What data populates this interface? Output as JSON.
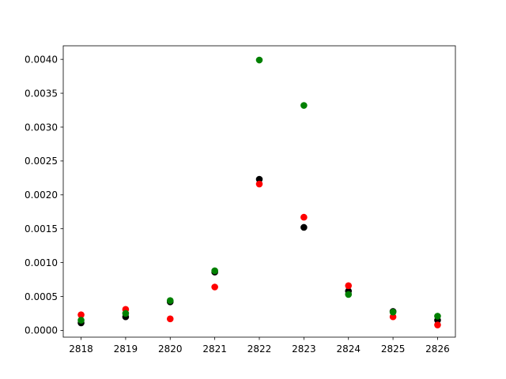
{
  "chart_data": {
    "type": "scatter",
    "x": [
      2818,
      2819,
      2820,
      2821,
      2822,
      2823,
      2824,
      2825,
      2826
    ],
    "xticks": [
      2818,
      2819,
      2820,
      2821,
      2822,
      2823,
      2824,
      2825,
      2826
    ],
    "xtick_labels": [
      "2818",
      "2819",
      "2820",
      "2821",
      "2822",
      "2823",
      "2824",
      "2825",
      "2826"
    ],
    "yticks": [
      0.0,
      0.0005,
      0.001,
      0.0015,
      0.002,
      0.0025,
      0.003,
      0.0035,
      0.004
    ],
    "ytick_labels": [
      "0.0000",
      "0.0005",
      "0.0010",
      "0.0015",
      "0.0020",
      "0.0025",
      "0.0030",
      "0.0035",
      "0.0040"
    ],
    "xlim": [
      2817.6,
      2826.4
    ],
    "ylim": [
      -0.0001,
      0.0042
    ],
    "grid": false,
    "title": "",
    "xlabel": "",
    "ylabel": "",
    "series": [
      {
        "color": "#000000",
        "values": [
          0.00011,
          0.0002,
          0.00042,
          0.00086,
          0.00223,
          0.00152,
          0.00058,
          0.00028,
          0.00015
        ]
      },
      {
        "color": "#ff0000",
        "values": [
          0.00023,
          0.00031,
          0.00017,
          0.00064,
          0.00216,
          0.00167,
          0.00066,
          0.0002,
          8e-05
        ]
      },
      {
        "color": "#008000",
        "values": [
          0.00015,
          0.00025,
          0.00044,
          0.00088,
          0.00399,
          0.00332,
          0.00053,
          0.00027,
          0.00021
        ]
      }
    ]
  }
}
